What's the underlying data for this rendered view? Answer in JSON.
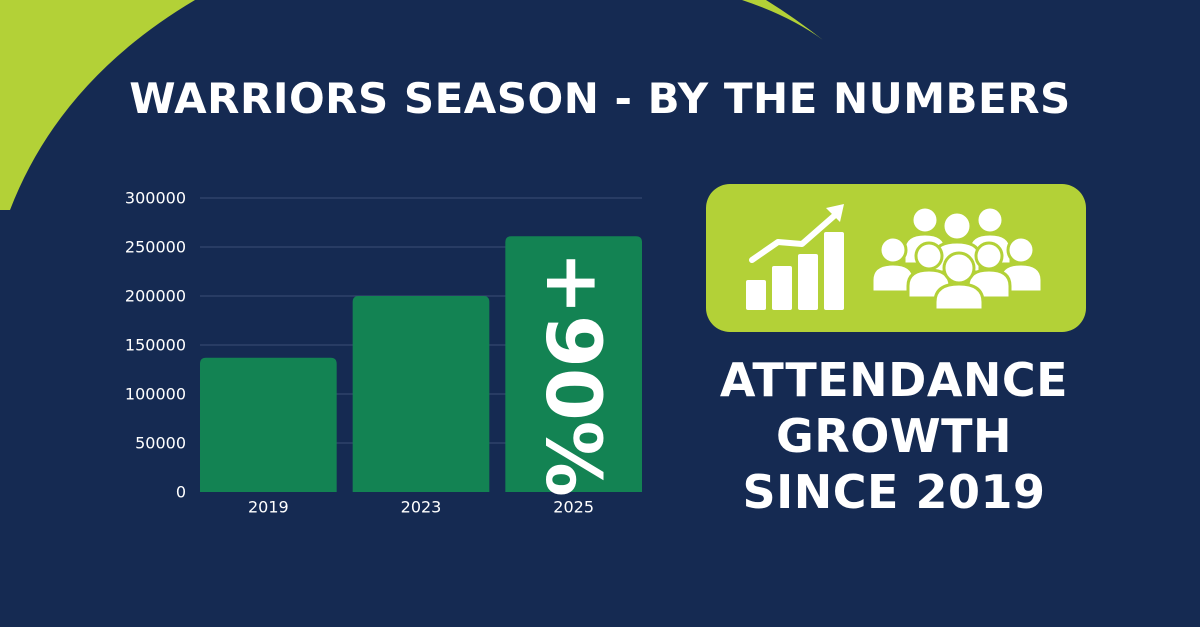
{
  "title": "WARRIORS SEASON - BY THE NUMBERS",
  "growth_label": "+90%",
  "caption_lines": [
    "ATTENDANCE",
    "GROWTH",
    "SINCE 2019"
  ],
  "icons": [
    "growth-chart-icon",
    "crowd-icon"
  ],
  "colors": {
    "background": "#152a52",
    "accent": "#b3d137",
    "bar": "#138353",
    "text": "#ffffff",
    "gridline": "#3a4e75"
  },
  "chart_data": {
    "type": "bar",
    "categories": [
      "2019",
      "2023",
      "2025"
    ],
    "values": [
      137000,
      200000,
      261000
    ],
    "yticks": [
      "0",
      "50000",
      "100000",
      "150000",
      "200000",
      "250000",
      "300000"
    ],
    "ylim": [
      0,
      300000
    ],
    "xlabel": "",
    "ylabel": "",
    "grid": true,
    "legend": "none"
  }
}
